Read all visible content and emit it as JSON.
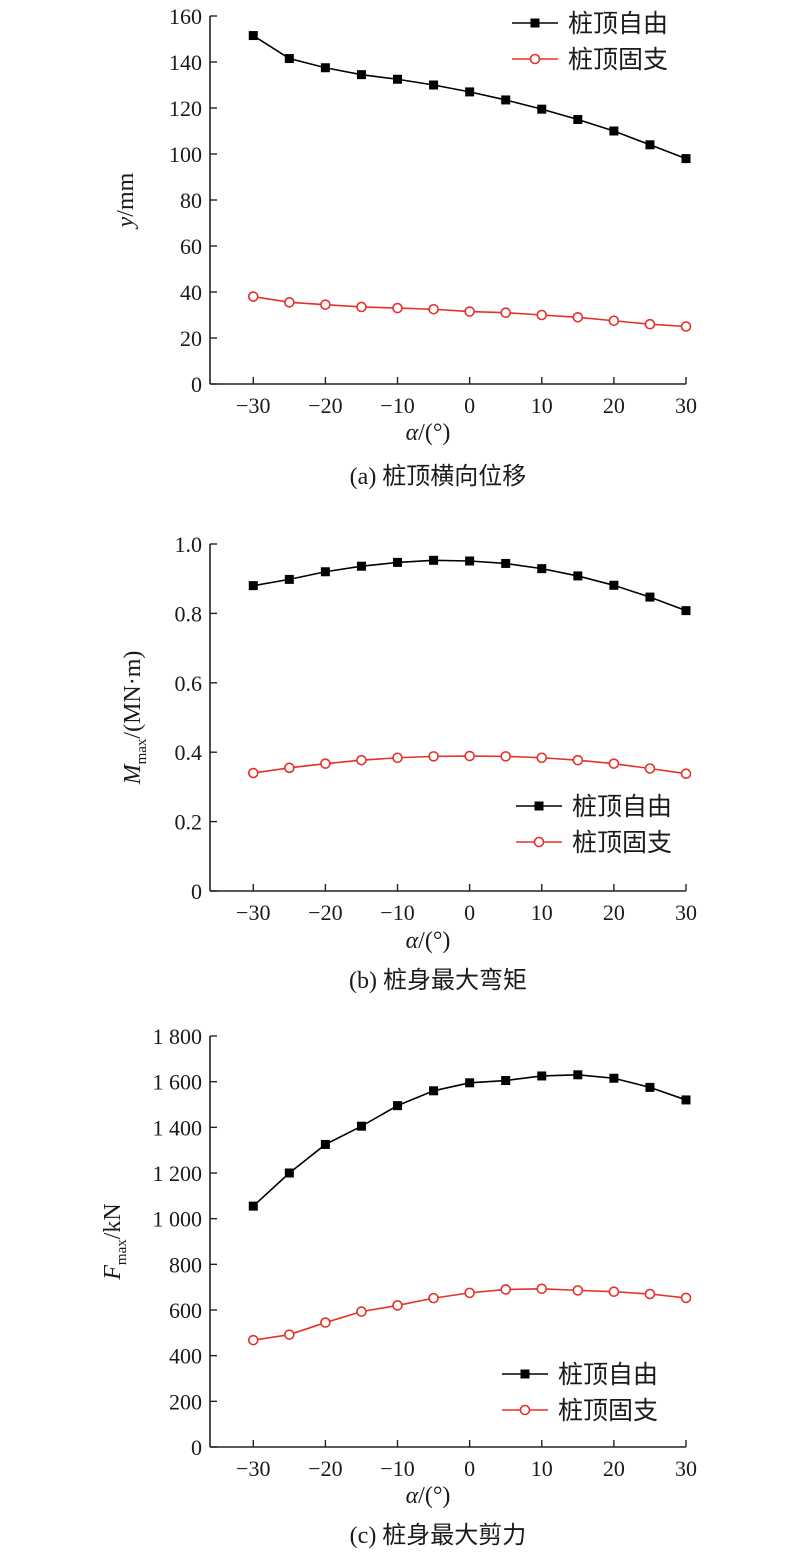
{
  "chart_data": [
    {
      "type": "line",
      "caption": "(a) 桩顶横向位移",
      "xlabel": {
        "var": "α",
        "unit": "/(°)"
      },
      "ylabel": {
        "var": "y",
        "sub": "",
        "unit": "/mm"
      },
      "xlim": [
        -36,
        30
      ],
      "ylim": [
        0,
        160
      ],
      "xticks": [
        -30,
        -20,
        -10,
        0,
        10,
        20,
        30
      ],
      "xtick_labels": [
        "−30",
        "−20",
        "−10",
        "0",
        "10",
        "20",
        "30"
      ],
      "yticks": [
        0,
        20,
        40,
        60,
        80,
        100,
        120,
        140,
        160
      ],
      "ytick_labels": [
        "0",
        "20",
        "40",
        "60",
        "80",
        "100",
        "120",
        "140",
        "160"
      ],
      "legend_position": "top-right",
      "x": [
        -30,
        -25,
        -20,
        -15,
        -10,
        -5,
        0,
        5,
        10,
        15,
        20,
        25,
        30
      ],
      "series": [
        {
          "name": "桩顶自由",
          "marker": "square",
          "color": "#000000",
          "values": [
            151.5,
            141.5,
            137.5,
            134.5,
            132.5,
            130,
            127,
            123.5,
            119.5,
            115,
            110,
            104,
            98
          ]
        },
        {
          "name": "桩顶固支",
          "marker": "circle",
          "color": "#e8302a",
          "values": [
            38,
            35.5,
            34.5,
            33.5,
            33,
            32.5,
            31.5,
            31,
            30,
            29,
            27.5,
            26,
            25
          ]
        }
      ]
    },
    {
      "type": "line",
      "caption": "(b) 桩身最大弯矩",
      "xlabel": {
        "var": "α",
        "unit": "/(°)"
      },
      "ylabel": {
        "var": "M",
        "sub": "max",
        "unit": "/(MN·m)"
      },
      "xlim": [
        -36,
        30
      ],
      "ylim": [
        0,
        1.0
      ],
      "xticks": [
        -30,
        -20,
        -10,
        0,
        10,
        20,
        30
      ],
      "xtick_labels": [
        "−30",
        "−20",
        "−10",
        "0",
        "10",
        "20",
        "30"
      ],
      "yticks": [
        0,
        0.2,
        0.4,
        0.6,
        0.8,
        1.0
      ],
      "ytick_labels": [
        "0",
        "0.2",
        "0.4",
        "0.6",
        "0.8",
        "1.0"
      ],
      "legend_position": "bottom-right",
      "x": [
        -30,
        -25,
        -20,
        -15,
        -10,
        -5,
        0,
        5,
        10,
        15,
        20,
        25,
        30
      ],
      "series": [
        {
          "name": "桩顶自由",
          "marker": "square",
          "color": "#000000",
          "values": [
            0.88,
            0.898,
            0.92,
            0.936,
            0.947,
            0.953,
            0.951,
            0.944,
            0.929,
            0.908,
            0.881,
            0.847,
            0.808
          ]
        },
        {
          "name": "桩顶固支",
          "marker": "circle",
          "color": "#e8302a",
          "values": [
            0.34,
            0.355,
            0.367,
            0.377,
            0.384,
            0.388,
            0.389,
            0.388,
            0.384,
            0.377,
            0.367,
            0.353,
            0.338
          ]
        }
      ]
    },
    {
      "type": "line",
      "caption": "(c) 桩身最大剪力",
      "xlabel": {
        "var": "α",
        "unit": "/(°)"
      },
      "ylabel": {
        "var": "F",
        "sub": "max",
        "unit": "/kN"
      },
      "xlim": [
        -36,
        30
      ],
      "ylim": [
        0,
        1800
      ],
      "xticks": [
        -30,
        -20,
        -10,
        0,
        10,
        20,
        30
      ],
      "xtick_labels": [
        "−30",
        "−20",
        "−10",
        "0",
        "10",
        "20",
        "30"
      ],
      "yticks": [
        0,
        200,
        400,
        600,
        800,
        1000,
        1200,
        1400,
        1600,
        1800
      ],
      "ytick_labels": [
        "0",
        "200",
        "400",
        "600",
        "800",
        "1 000",
        "1 200",
        "1 400",
        "1 600",
        "1 800"
      ],
      "legend_position": "bottom-right",
      "x": [
        -30,
        -25,
        -20,
        -15,
        -10,
        -5,
        0,
        5,
        10,
        15,
        20,
        25,
        30
      ],
      "series": [
        {
          "name": "桩顶自由",
          "marker": "square",
          "color": "#000000",
          "values": [
            1055,
            1200,
            1325,
            1405,
            1495,
            1560,
            1595,
            1605,
            1625,
            1630,
            1615,
            1575,
            1520
          ]
        },
        {
          "name": "桩顶固支",
          "marker": "circle",
          "color": "#e8302a",
          "values": [
            468,
            492,
            545,
            593,
            620,
            652,
            675,
            690,
            693,
            686,
            680,
            670,
            653
          ]
        }
      ]
    }
  ]
}
